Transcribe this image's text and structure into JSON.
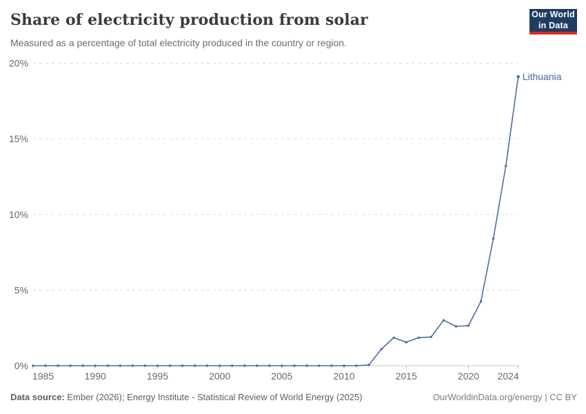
{
  "header": {
    "title": "Share of electricity production from solar",
    "subtitle": "Measured as a percentage of total electricity produced in the country or region.",
    "logo": {
      "line1": "Our World",
      "line2": "in Data"
    }
  },
  "chart_data": {
    "type": "line",
    "title": "Share of electricity production from solar",
    "xlabel": "",
    "ylabel": "",
    "xlim": [
      1985,
      2024
    ],
    "ylim": [
      0,
      20
    ],
    "x_ticks": [
      1985,
      1990,
      1995,
      2000,
      2005,
      2010,
      2015,
      2020,
      2024
    ],
    "y_ticks": [
      0,
      5,
      10,
      15,
      20
    ],
    "y_tick_suffix": "%",
    "grid": "horizontal-dashed",
    "legend_position": "end-of-line-label",
    "series": [
      {
        "name": "Lithuania",
        "x": [
          1985,
          1986,
          1987,
          1988,
          1989,
          1990,
          1991,
          1992,
          1993,
          1994,
          1995,
          1996,
          1997,
          1998,
          1999,
          2000,
          2001,
          2002,
          2003,
          2004,
          2005,
          2006,
          2007,
          2008,
          2009,
          2010,
          2011,
          2012,
          2013,
          2014,
          2015,
          2016,
          2017,
          2018,
          2019,
          2020,
          2021,
          2022,
          2023,
          2024
        ],
        "values": [
          0,
          0,
          0,
          0,
          0,
          0,
          0,
          0,
          0,
          0,
          0,
          0,
          0,
          0,
          0,
          0,
          0,
          0,
          0,
          0,
          0,
          0,
          0,
          0,
          0,
          0,
          0,
          0.05,
          1.1,
          1.85,
          1.55,
          1.85,
          1.9,
          3.0,
          2.6,
          2.65,
          4.25,
          8.4,
          13.2,
          19.1
        ]
      }
    ]
  },
  "colors": {
    "line": "#4c6a9c",
    "series_label": "#48669a",
    "grid": "#d9d9d9",
    "axis": "#c8c8c8",
    "tick": "#b0b0b0",
    "tick_text": "#666666"
  },
  "footer": {
    "datasource_label": "Data source:",
    "datasource_text": " Ember (2026); Energy Institute - Statistical Review of World Energy (2025)",
    "right_text": "OurWorldinData.org/energy | CC BY"
  }
}
